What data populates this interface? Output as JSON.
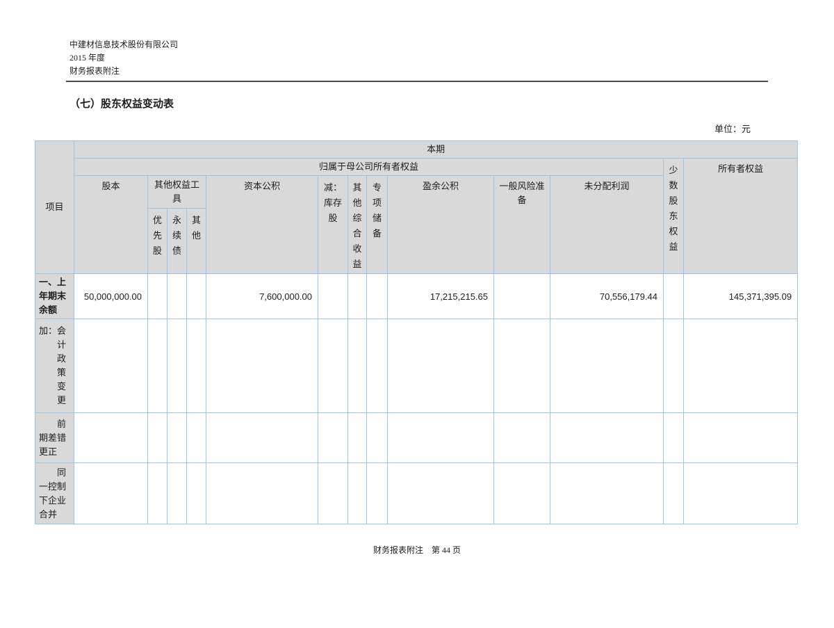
{
  "document": {
    "company_name": "中建材信息技术股份有限公司",
    "fiscal_year": "2015 年度",
    "doc_type": "财务报表附注",
    "section_title": "（七）股东权益变动表",
    "unit_label": "单位：元",
    "footer_text": "财务报表附注　第 44 页"
  },
  "colors": {
    "table_border": "#9cc2e5",
    "header_fill": "#d9d9d9",
    "text": "#1c1c1c",
    "rule": "#4a4a4a"
  },
  "table": {
    "headers": {
      "item": "项目",
      "period": "本期",
      "parent_equity": "归属于母公司所有者权益",
      "share_capital": "股本",
      "other_equity_instruments": "其他权益工\n具",
      "preferred_shares": "优\n先\n股",
      "perpetual_bonds": "永\n续\n债",
      "other": "其\n他",
      "capital_reserve": "资本公积",
      "less_treasury_shares": "减：\n库存\n股",
      "other_comprehensive_income": "其\n他\n综\n合\n收\n益",
      "special_reserve": "专\n项\n储\n备",
      "surplus_reserve": "盈余公积",
      "general_risk_reserve": "一般风险准\n备",
      "undistributed_profit": "未分配利润",
      "minority_interest": "少\n数\n股\n东\n权\n益",
      "owners_equity": "所有者权益"
    },
    "rows": [
      {
        "label": "一、上\n年期末\n余额",
        "bold": true,
        "values": [
          "50,000,000.00",
          "",
          "",
          "",
          "7,600,000.00",
          "",
          "",
          "",
          "17,215,215.65",
          "",
          "70,556,179.44",
          "",
          "145,371,395.09"
        ]
      },
      {
        "label": "加：会\n　　计\n　　政\n　　策\n　　变\n　　更",
        "bold": false,
        "values": [
          "",
          "",
          "",
          "",
          "",
          "",
          "",
          "",
          "",
          "",
          "",
          "",
          ""
        ]
      },
      {
        "label": "　　前\n期差错\n更正",
        "bold": false,
        "values": [
          "",
          "",
          "",
          "",
          "",
          "",
          "",
          "",
          "",
          "",
          "",
          "",
          ""
        ]
      },
      {
        "label": "　　同\n一控制\n下企业\n合并",
        "bold": false,
        "values": [
          "",
          "",
          "",
          "",
          "",
          "",
          "",
          "",
          "",
          "",
          "",
          "",
          ""
        ]
      }
    ]
  }
}
